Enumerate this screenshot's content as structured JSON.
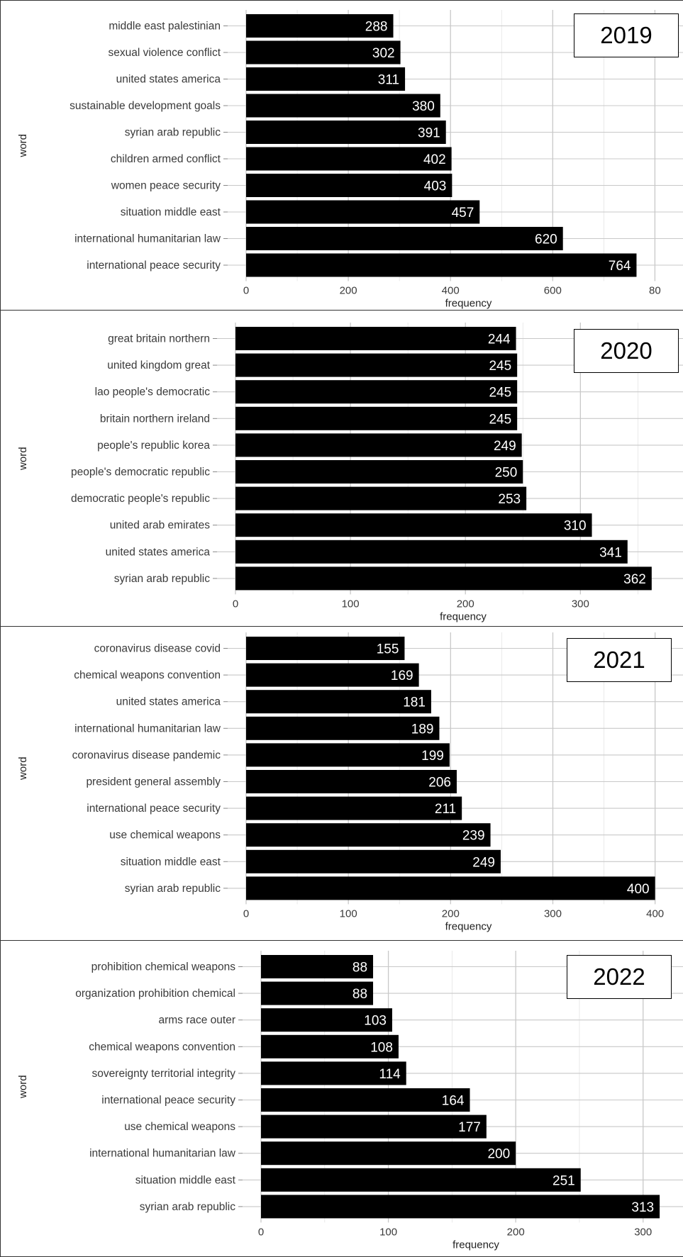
{
  "chart_data": [
    {
      "type": "bar",
      "orientation": "horizontal",
      "panel_label": "2019",
      "xlabel": "frequency",
      "ylabel": "word",
      "xlim": [
        0,
        800
      ],
      "xticks": [
        "0",
        "200",
        "400",
        "600",
        "80"
      ],
      "grid": true,
      "categories": [
        "middle east palestinian",
        "sexual violence conflict",
        "united states america",
        "sustainable development goals",
        "syrian arab republic",
        "children armed conflict",
        "women peace security",
        "situation middle east",
        "international humanitarian law",
        "international peace security"
      ],
      "values": [
        288,
        302,
        311,
        380,
        391,
        402,
        403,
        457,
        620,
        764
      ]
    },
    {
      "type": "bar",
      "orientation": "horizontal",
      "panel_label": "2020",
      "xlabel": "frequency",
      "ylabel": "word",
      "xlim": [
        0,
        370
      ],
      "xticks": [
        "0",
        "100",
        "200",
        "300"
      ],
      "grid": true,
      "categories": [
        "great britain northern",
        "united kingdom great",
        "lao people's democratic",
        "britain northern ireland",
        "people's republic korea",
        "people's democratic republic",
        "democratic people's republic",
        "united arab emirates",
        "united states america",
        "syrian arab republic"
      ],
      "values": [
        244,
        245,
        245,
        245,
        249,
        250,
        253,
        310,
        341,
        362
      ]
    },
    {
      "type": "bar",
      "orientation": "horizontal",
      "panel_label": "2021",
      "xlabel": "frequency",
      "ylabel": "word",
      "xlim": [
        0,
        420
      ],
      "xticks": [
        "0",
        "100",
        "200",
        "300",
        "400"
      ],
      "grid": true,
      "categories": [
        "coronavirus disease covid",
        "chemical weapons convention",
        "united states america",
        "international humanitarian law",
        "coronavirus disease pandemic",
        "president general assembly",
        "international peace security",
        "use chemical weapons",
        "situation middle east",
        "syrian arab republic"
      ],
      "values": [
        155,
        169,
        181,
        189,
        199,
        206,
        211,
        239,
        249,
        400
      ]
    },
    {
      "type": "bar",
      "orientation": "horizontal",
      "panel_label": "2022",
      "xlabel": "frequency",
      "ylabel": "word",
      "xlim": [
        0,
        330
      ],
      "xticks": [
        "0",
        "100",
        "200",
        "300"
      ],
      "grid": true,
      "categories": [
        "prohibition chemical weapons",
        "organization prohibition chemical",
        "arms race outer",
        "chemical weapons convention",
        "sovereignty territorial integrity",
        "international peace security",
        "use chemical weapons",
        "international humanitarian law",
        "situation middle east",
        "syrian arab republic"
      ],
      "values": [
        88,
        88,
        103,
        108,
        114,
        164,
        177,
        200,
        251,
        313
      ]
    }
  ],
  "colors": {
    "bar": "#000000",
    "grid": "#c8c8c8",
    "bar_label": "#ffffff"
  }
}
